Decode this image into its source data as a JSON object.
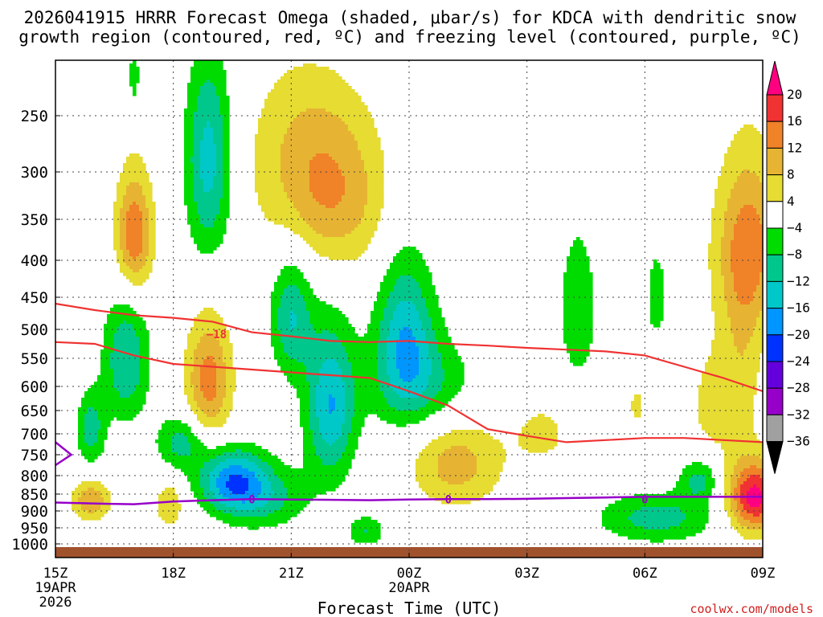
{
  "chart_data": {
    "type": "heatmap",
    "title_line1": "2026041915 HRRR Forecast Omega (shaded, μbar/s) for KDCA with dendritic snow",
    "title_line2": "growth region (contoured, red, ºC) and freezing level (contoured, purple, ºC)",
    "xlabel": "Forecast Time (UTC)",
    "credit": "coolwx.com/models",
    "x_ticks": [
      {
        "hour": 0,
        "label": "15Z",
        "sub1": "19APR",
        "sub2": "2026"
      },
      {
        "hour": 3,
        "label": "18Z",
        "sub1": "",
        "sub2": ""
      },
      {
        "hour": 6,
        "label": "21Z",
        "sub1": "",
        "sub2": ""
      },
      {
        "hour": 9,
        "label": "00Z",
        "sub1": "20APR",
        "sub2": ""
      },
      {
        "hour": 12,
        "label": "03Z",
        "sub1": "",
        "sub2": ""
      },
      {
        "hour": 15,
        "label": "06Z",
        "sub1": "",
        "sub2": ""
      },
      {
        "hour": 18,
        "label": "09Z",
        "sub1": "",
        "sub2": ""
      }
    ],
    "xlim": [
      0,
      18
    ],
    "y_ticks": [
      250,
      300,
      350,
      400,
      450,
      500,
      550,
      600,
      650,
      700,
      750,
      800,
      850,
      900,
      950,
      1000
    ],
    "ylim_hPa": [
      200,
      1025
    ],
    "colorbar": {
      "labels": [
        "20",
        "16",
        "12",
        "8",
        "4",
        "−4",
        "−8",
        "−12",
        "−16",
        "−20",
        "−24",
        "−28",
        "−32",
        "−36"
      ],
      "colors": [
        "#ff0080",
        "#f03232",
        "#f08228",
        "#e6b432",
        "#e6dc32",
        "#ffffff",
        "#00dc00",
        "#00c88c",
        "#00c8c8",
        "#0096ff",
        "#0032ff",
        "#6400dc",
        "#9600c8",
        "#a0a0a0",
        "#000000"
      ]
    },
    "contour_labels": {
      "dgz_upper": "−18",
      "freezing": "0"
    },
    "dgz_upper_isotherm": [
      [
        0,
        460
      ],
      [
        1,
        470
      ],
      [
        2,
        478
      ],
      [
        3,
        482
      ],
      [
        4,
        488
      ],
      [
        5,
        505
      ],
      [
        6,
        512
      ],
      [
        7,
        520
      ],
      [
        8,
        522
      ],
      [
        9,
        520
      ],
      [
        10,
        525
      ],
      [
        11,
        528
      ],
      [
        12,
        532
      ],
      [
        13,
        535
      ],
      [
        14,
        538
      ],
      [
        15,
        545
      ],
      [
        16,
        565
      ],
      [
        17,
        585
      ],
      [
        18,
        610
      ]
    ],
    "dgz_lower_isotherm": [
      [
        0,
        522
      ],
      [
        1,
        525
      ],
      [
        2,
        545
      ],
      [
        3,
        560
      ],
      [
        4,
        565
      ],
      [
        5,
        570
      ],
      [
        6,
        575
      ],
      [
        7,
        580
      ],
      [
        8,
        585
      ],
      [
        9,
        610
      ],
      [
        10,
        640
      ],
      [
        11,
        690
      ],
      [
        12,
        705
      ],
      [
        13,
        720
      ],
      [
        14,
        715
      ],
      [
        15,
        710
      ],
      [
        16,
        710
      ],
      [
        17,
        715
      ],
      [
        18,
        720
      ]
    ],
    "freezing_level": [
      [
        0,
        875
      ],
      [
        1,
        878
      ],
      [
        2,
        880
      ],
      [
        3,
        872
      ],
      [
        4,
        868
      ],
      [
        5,
        865
      ],
      [
        6,
        866
      ],
      [
        7,
        867
      ],
      [
        8,
        868
      ],
      [
        9,
        866
      ],
      [
        10,
        865
      ],
      [
        11,
        865
      ],
      [
        12,
        864
      ],
      [
        13,
        862
      ],
      [
        14,
        860
      ],
      [
        15,
        858
      ],
      [
        16,
        858
      ],
      [
        17,
        858
      ],
      [
        18,
        858
      ]
    ],
    "freezing_level_left_spur": [
      [
        0,
        720
      ],
      [
        0.4,
        750
      ],
      [
        0,
        775
      ]
    ],
    "omega_features": [
      {
        "cx": 2.0,
        "cy": 370,
        "rx": 0.45,
        "ry": 70,
        "peak": 16
      },
      {
        "cx": 3.9,
        "cy": 590,
        "rx": 0.55,
        "ry": 110,
        "peak": 14
      },
      {
        "cx": 1.8,
        "cy": 550,
        "rx": 0.55,
        "ry": 110,
        "peak": -12
      },
      {
        "cx": 0.9,
        "cy": 690,
        "rx": 0.35,
        "ry": 80,
        "peak": -10
      },
      {
        "cx": 3.9,
        "cy": 290,
        "rx": 0.55,
        "ry": 95,
        "peak": -14
      },
      {
        "cx": 6.3,
        "cy": 290,
        "rx": 1.4,
        "ry": 90,
        "peak": 8
      },
      {
        "cx": 7.3,
        "cy": 330,
        "rx": 1.2,
        "ry": 80,
        "peak": 8
      },
      {
        "cx": 6.0,
        "cy": 480,
        "rx": 0.5,
        "ry": 90,
        "peak": -12
      },
      {
        "cx": 7.0,
        "cy": 640,
        "rx": 0.6,
        "ry": 150,
        "peak": -16
      },
      {
        "cx": 8.9,
        "cy": 510,
        "rx": 0.7,
        "ry": 120,
        "peak": -14
      },
      {
        "cx": 9.4,
        "cy": 600,
        "rx": 1.3,
        "ry": 90,
        "peak": -8
      },
      {
        "cx": 4.5,
        "cy": 810,
        "rx": 0.8,
        "ry": 75,
        "peak": -16
      },
      {
        "cx": 3.2,
        "cy": 720,
        "rx": 0.6,
        "ry": 60,
        "peak": -10
      },
      {
        "cx": 5.2,
        "cy": 860,
        "rx": 1.1,
        "ry": 85,
        "peak": -10
      },
      {
        "cx": 0.9,
        "cy": 868,
        "rx": 0.45,
        "ry": 55,
        "peak": 12
      },
      {
        "cx": 2.9,
        "cy": 880,
        "rx": 0.35,
        "ry": 65,
        "peak": 8
      },
      {
        "cx": 10.2,
        "cy": 770,
        "rx": 1.1,
        "ry": 110,
        "peak": 10
      },
      {
        "cx": 12.4,
        "cy": 700,
        "rx": 0.8,
        "ry": 80,
        "peak": 5
      },
      {
        "cx": 7.9,
        "cy": 960,
        "rx": 0.45,
        "ry": 45,
        "peak": -8
      },
      {
        "cx": 13.3,
        "cy": 470,
        "rx": 0.45,
        "ry": 110,
        "peak": -8
      },
      {
        "cx": 15.3,
        "cy": 450,
        "rx": 0.3,
        "ry": 75,
        "peak": -6
      },
      {
        "cx": 15.3,
        "cy": 920,
        "rx": 1.4,
        "ry": 70,
        "peak": -10
      },
      {
        "cx": 16.4,
        "cy": 810,
        "rx": 0.5,
        "ry": 55,
        "peak": -10
      },
      {
        "cx": 14.8,
        "cy": 640,
        "rx": 0.25,
        "ry": 45,
        "peak": 5
      },
      {
        "cx": 16.7,
        "cy": 640,
        "rx": 0.7,
        "ry": 140,
        "peak": 5
      },
      {
        "cx": 17.7,
        "cy": 380,
        "rx": 0.9,
        "ry": 100,
        "peak": 12
      },
      {
        "cx": 17.5,
        "cy": 520,
        "rx": 0.5,
        "ry": 180,
        "peak": 6
      },
      {
        "cx": 17.8,
        "cy": 860,
        "rx": 0.65,
        "ry": 95,
        "peak": 22
      },
      {
        "cx": 2.0,
        "cy": 215,
        "rx": 0.15,
        "ry": 30,
        "peak": -6
      }
    ]
  }
}
